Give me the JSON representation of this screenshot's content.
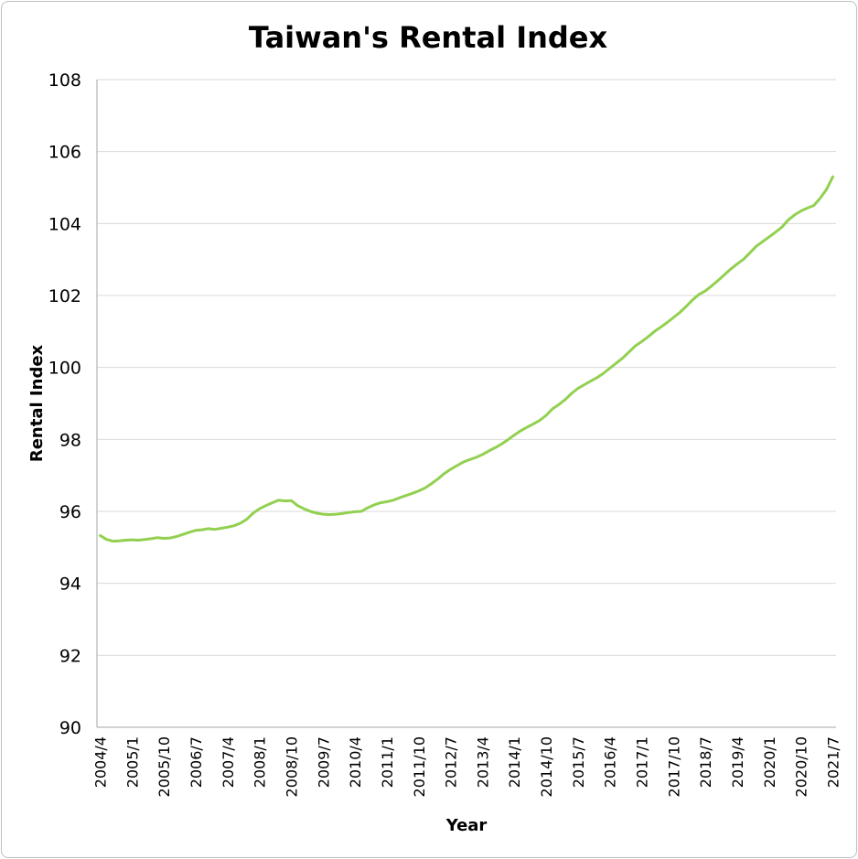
{
  "chart_data": {
    "type": "line",
    "title": "Taiwan's Rental Index",
    "xlabel": "Year",
    "ylabel": "Rental Index",
    "ylim": [
      90,
      108
    ],
    "yticks": [
      90,
      92,
      94,
      96,
      98,
      100,
      102,
      104,
      106,
      108
    ],
    "xtick_labels": [
      "2004/4",
      "2005/1",
      "2005/10",
      "2006/7",
      "2007/4",
      "2008/1",
      "2008/10",
      "2009/7",
      "2010/4",
      "2011/1",
      "2011/10",
      "2012/7",
      "2013/4",
      "2014/1",
      "2014/10",
      "2015/7",
      "2016/4",
      "2017/1",
      "2017/10",
      "2018/7",
      "2019/4",
      "2020/1",
      "2020/10",
      "2021/7"
    ],
    "grid": true,
    "legend": "none",
    "colors": {
      "line": "#92d050",
      "grid": "#d9d9d9",
      "axis": "#a6a6a6"
    },
    "series": [
      {
        "values": [
          95.33,
          95.22,
          95.17,
          95.18,
          95.2,
          95.21,
          95.2,
          95.22,
          95.24,
          95.27,
          95.25,
          95.26,
          95.3,
          95.36,
          95.42,
          95.47,
          95.49,
          95.52,
          95.5,
          95.53,
          95.56,
          95.6,
          95.67,
          95.78,
          95.95,
          96.07,
          96.16,
          96.24,
          96.31,
          96.29,
          96.3,
          96.16,
          96.07,
          96.0,
          95.95,
          95.92,
          95.91,
          95.92,
          95.94,
          95.97,
          95.99,
          96.0,
          96.1,
          96.18,
          96.24,
          96.27,
          96.31,
          96.38,
          96.44,
          96.5,
          96.57,
          96.65,
          96.77,
          96.9,
          97.05,
          97.17,
          97.27,
          97.37,
          97.44,
          97.5,
          97.58,
          97.68,
          97.77,
          97.87,
          97.99,
          98.12,
          98.24,
          98.34,
          98.43,
          98.53,
          98.67,
          98.85,
          98.97,
          99.11,
          99.28,
          99.42,
          99.52,
          99.62,
          99.72,
          99.84,
          99.98,
          100.12,
          100.26,
          100.43,
          100.6,
          100.72,
          100.85,
          101.0,
          101.12,
          101.25,
          101.39,
          101.53,
          101.7,
          101.88,
          102.03,
          102.13,
          102.27,
          102.42,
          102.58,
          102.74,
          102.88,
          103.01,
          103.19,
          103.37,
          103.5,
          103.63,
          103.76,
          103.9,
          104.1,
          104.24,
          104.35,
          104.43,
          104.5,
          104.7,
          104.95,
          105.3
        ]
      }
    ]
  }
}
